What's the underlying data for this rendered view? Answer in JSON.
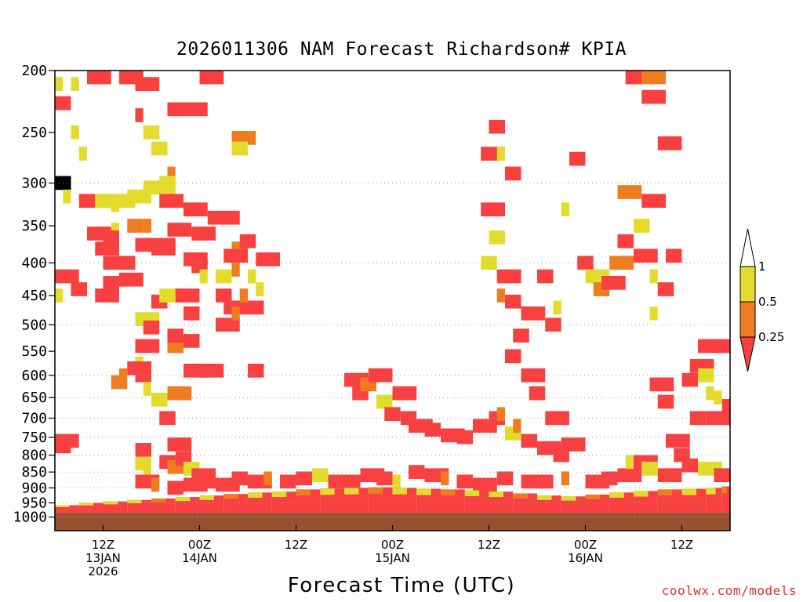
{
  "chart_data": {
    "type": "heatmap",
    "title": "2026011306 NAM Forecast Richardson# KPIA",
    "xlabel": "Forecast Time (UTC)",
    "credit": "coolwx.com/models",
    "y_axis": {
      "scale": "log-pressure",
      "range_hPa": [
        1050,
        200
      ],
      "ticks": [
        200,
        250,
        300,
        350,
        400,
        450,
        500,
        550,
        600,
        650,
        700,
        750,
        800,
        850,
        900,
        950,
        1000
      ],
      "dotted_grid_at": [
        300,
        400,
        500,
        600,
        650,
        700,
        750,
        800,
        850,
        900,
        950,
        1000
      ]
    },
    "x_axis": {
      "range_forecast_hours": [
        0,
        84
      ],
      "ticks": [
        {
          "fh": 6,
          "lines": [
            "12Z",
            "13JAN",
            "2026"
          ]
        },
        {
          "fh": 18,
          "lines": [
            "00Z",
            "14JAN"
          ]
        },
        {
          "fh": 30,
          "lines": [
            "12Z"
          ]
        },
        {
          "fh": 42,
          "lines": [
            "00Z",
            "15JAN"
          ]
        },
        {
          "fh": 54,
          "lines": [
            "12Z"
          ]
        },
        {
          "fh": 66,
          "lines": [
            "00Z",
            "16JAN"
          ]
        },
        {
          "fh": 78,
          "lines": [
            "12Z"
          ]
        }
      ]
    },
    "colorbar": {
      "labels": [
        "1",
        "0.5",
        "0.25"
      ],
      "bins": [
        {
          "range": "<0.25",
          "color": "#f84040"
        },
        {
          "range": "0.25-0.5",
          "color": "#f07c20"
        },
        {
          "range": "0.5-1",
          "color": "#e4dc2c"
        },
        {
          "range": ">1",
          "color": "#ffffff"
        }
      ]
    },
    "ground_color": "#985030",
    "surface_pressure_hPa": 985,
    "cells": [
      [
        0,
        210,
        2,
        0
      ],
      [
        2,
        210,
        2,
        0
      ],
      [
        4,
        205,
        0,
        2
      ],
      [
        8,
        205,
        0,
        2
      ],
      [
        10,
        210,
        0,
        2
      ],
      [
        18,
        205,
        0,
        2
      ],
      [
        0,
        225,
        0,
        1
      ],
      [
        10,
        235,
        0,
        0
      ],
      [
        11,
        250,
        2,
        1
      ],
      [
        12,
        265,
        2,
        1
      ],
      [
        14,
        290,
        1,
        0
      ],
      [
        14,
        230,
        0,
        4
      ],
      [
        2,
        250,
        2,
        0
      ],
      [
        3,
        270,
        2,
        0
      ],
      [
        22,
        255,
        1,
        2
      ],
      [
        22,
        265,
        2,
        1
      ],
      [
        0,
        300,
        4,
        1
      ],
      [
        1,
        315,
        2,
        0
      ],
      [
        3,
        320,
        0,
        3
      ],
      [
        5,
        320,
        2,
        4
      ],
      [
        7,
        325,
        2,
        0
      ],
      [
        9,
        315,
        2,
        2
      ],
      [
        11,
        305,
        2,
        3
      ],
      [
        13,
        300,
        2,
        1
      ],
      [
        5,
        345,
        3,
        0
      ],
      [
        7,
        355,
        2,
        0
      ],
      [
        9,
        350,
        1,
        1
      ],
      [
        11,
        350,
        1,
        0
      ],
      [
        4,
        360,
        0,
        2
      ],
      [
        6,
        365,
        0,
        1
      ],
      [
        5,
        380,
        0,
        2
      ],
      [
        6,
        400,
        0,
        3
      ],
      [
        10,
        375,
        0,
        4
      ],
      [
        12,
        380,
        0,
        2
      ],
      [
        13,
        320,
        0,
        2
      ],
      [
        14,
        355,
        0,
        2
      ],
      [
        16,
        330,
        0,
        2
      ],
      [
        17,
        360,
        0,
        2
      ],
      [
        16,
        395,
        0,
        2
      ],
      [
        19,
        340,
        0,
        3
      ],
      [
        17,
        405,
        0,
        1
      ],
      [
        18,
        420,
        2,
        0
      ],
      [
        20,
        420,
        2,
        1
      ],
      [
        22,
        410,
        1,
        0
      ],
      [
        20,
        450,
        0,
        1
      ],
      [
        22,
        380,
        1,
        1
      ],
      [
        21,
        390,
        0,
        2
      ],
      [
        23,
        370,
        0,
        1
      ],
      [
        21,
        470,
        0,
        2
      ],
      [
        23,
        450,
        1,
        0
      ],
      [
        24,
        420,
        2,
        0
      ],
      [
        25,
        395,
        0,
        2
      ],
      [
        25,
        440,
        2,
        0
      ],
      [
        20,
        500,
        0,
        2
      ],
      [
        22,
        480,
        1,
        0
      ],
      [
        24,
        470,
        0,
        1
      ],
      [
        0,
        420,
        0,
        2
      ],
      [
        0,
        450,
        2,
        0
      ],
      [
        2,
        440,
        0,
        1
      ],
      [
        5,
        450,
        0,
        2
      ],
      [
        6,
        430,
        0,
        1
      ],
      [
        8,
        425,
        0,
        2
      ],
      [
        10,
        490,
        2,
        2
      ],
      [
        10,
        540,
        0,
        2
      ],
      [
        10,
        575,
        2,
        0
      ],
      [
        11,
        505,
        0,
        1
      ],
      [
        12,
        460,
        0,
        1
      ],
      [
        13,
        450,
        2,
        2
      ],
      [
        14,
        540,
        1,
        1
      ],
      [
        14,
        520,
        0,
        1
      ],
      [
        15,
        450,
        0,
        2
      ],
      [
        16,
        480,
        0,
        1
      ],
      [
        16,
        530,
        0,
        1
      ],
      [
        6,
        580,
        3,
        2
      ],
      [
        8,
        600,
        1,
        0
      ],
      [
        7,
        615,
        1,
        1
      ],
      [
        9,
        585,
        0,
        2
      ],
      [
        10,
        600,
        0,
        1
      ],
      [
        11,
        630,
        2,
        0
      ],
      [
        12,
        655,
        2,
        1
      ],
      [
        13,
        700,
        0,
        1
      ],
      [
        14,
        640,
        1,
        2
      ],
      [
        16,
        590,
        0,
        2
      ],
      [
        18,
        590,
        0,
        2
      ],
      [
        24,
        590,
        0,
        1
      ],
      [
        0,
        760,
        0,
        2
      ],
      [
        0,
        775,
        0,
        1
      ],
      [
        10,
        785,
        0,
        1
      ],
      [
        10,
        825,
        2,
        1
      ],
      [
        11,
        845,
        2,
        0
      ],
      [
        13,
        820,
        0,
        1
      ],
      [
        14,
        770,
        0,
        2
      ],
      [
        14,
        835,
        1,
        1
      ],
      [
        15,
        810,
        0,
        1
      ],
      [
        16,
        840,
        2,
        1
      ],
      [
        17,
        860,
        0,
        2
      ],
      [
        36,
        610,
        0,
        2
      ],
      [
        37,
        640,
        0,
        1
      ],
      [
        38,
        620,
        1,
        1
      ],
      [
        39,
        600,
        0,
        2
      ],
      [
        40,
        660,
        2,
        1
      ],
      [
        41,
        690,
        0,
        1
      ],
      [
        42,
        640,
        0,
        2
      ],
      [
        43,
        700,
        0,
        1
      ],
      [
        44,
        720,
        0,
        2
      ],
      [
        46,
        730,
        0,
        1
      ],
      [
        48,
        745,
        0,
        2
      ],
      [
        50,
        750,
        0,
        1
      ],
      [
        52,
        720,
        0,
        2
      ],
      [
        54,
        700,
        0,
        1
      ],
      [
        56,
        740,
        2,
        1
      ],
      [
        57,
        720,
        1,
        0
      ],
      [
        55,
        690,
        1,
        0
      ],
      [
        58,
        760,
        0,
        1
      ],
      [
        60,
        780,
        0,
        2
      ],
      [
        62,
        800,
        0,
        1
      ],
      [
        63,
        770,
        0,
        2
      ],
      [
        61,
        700,
        0,
        2
      ],
      [
        53,
        270,
        0,
        2
      ],
      [
        54,
        245,
        0,
        1
      ],
      [
        55,
        270,
        2,
        0
      ],
      [
        56,
        290,
        0,
        1
      ],
      [
        53,
        330,
        0,
        2
      ],
      [
        54,
        365,
        2,
        1
      ],
      [
        53,
        400,
        2,
        1
      ],
      [
        55,
        420,
        0,
        2
      ],
      [
        55,
        450,
        1,
        0
      ],
      [
        56,
        460,
        0,
        1
      ],
      [
        58,
        480,
        0,
        2
      ],
      [
        57,
        520,
        0,
        1
      ],
      [
        56,
        560,
        0,
        1
      ],
      [
        58,
        600,
        0,
        2
      ],
      [
        59,
        640,
        0,
        1
      ],
      [
        60,
        420,
        0,
        1
      ],
      [
        61,
        500,
        0,
        1
      ],
      [
        62,
        470,
        2,
        0
      ],
      [
        63,
        330,
        2,
        0
      ],
      [
        64,
        275,
        0,
        1
      ],
      [
        65,
        400,
        0,
        1
      ],
      [
        66,
        420,
        2,
        2
      ],
      [
        67,
        440,
        1,
        1
      ],
      [
        68,
        430,
        0,
        2
      ],
      [
        69,
        400,
        1,
        2
      ],
      [
        70,
        370,
        0,
        1
      ],
      [
        72,
        390,
        0,
        2
      ],
      [
        72,
        350,
        2,
        1
      ],
      [
        74,
        420,
        2,
        0
      ],
      [
        75,
        440,
        0,
        1
      ],
      [
        76,
        390,
        0,
        1
      ],
      [
        73,
        320,
        0,
        2
      ],
      [
        70,
        310,
        1,
        2
      ],
      [
        73,
        220,
        0,
        2
      ],
      [
        71,
        205,
        0,
        2
      ],
      [
        73,
        205,
        1,
        2
      ],
      [
        75,
        260,
        0,
        2
      ],
      [
        74,
        480,
        2,
        0
      ],
      [
        78,
        610,
        0,
        1
      ],
      [
        79,
        580,
        0,
        2
      ],
      [
        80,
        600,
        2,
        1
      ],
      [
        81,
        640,
        2,
        0
      ],
      [
        82,
        650,
        2,
        0
      ],
      [
        83,
        670,
        0,
        2
      ],
      [
        80,
        540,
        0,
        2
      ],
      [
        82,
        540,
        0,
        1
      ],
      [
        79,
        700,
        0,
        1
      ],
      [
        81,
        700,
        0,
        2
      ],
      [
        74,
        620,
        0,
        2
      ],
      [
        75,
        660,
        0,
        1
      ],
      [
        76,
        760,
        0,
        2
      ],
      [
        77,
        800,
        0,
        1
      ],
      [
        72,
        820,
        0,
        2
      ],
      [
        73,
        840,
        2,
        1
      ],
      [
        75,
        860,
        0,
        2
      ],
      [
        78,
        830,
        0,
        1
      ],
      [
        80,
        840,
        2,
        2
      ],
      [
        82,
        860,
        0,
        1
      ],
      [
        84,
        830,
        0,
        2
      ],
      [
        70,
        860,
        0,
        2
      ],
      [
        71,
        820,
        2,
        0
      ],
      [
        36,
        880,
        0,
        1
      ],
      [
        38,
        860,
        0,
        2
      ],
      [
        40,
        870,
        0,
        1
      ],
      [
        42,
        880,
        2,
        0
      ],
      [
        30,
        870,
        0,
        1
      ],
      [
        32,
        860,
        2,
        1
      ],
      [
        34,
        880,
        0,
        2
      ],
      [
        44,
        850,
        0,
        1
      ],
      [
        46,
        860,
        0,
        2
      ],
      [
        48,
        870,
        1,
        0
      ],
      [
        50,
        880,
        0,
        1
      ],
      [
        52,
        890,
        0,
        2
      ],
      [
        55,
        870,
        0,
        1
      ],
      [
        58,
        880,
        0,
        2
      ],
      [
        60,
        880,
        0,
        1
      ],
      [
        63,
        870,
        1,
        0
      ],
      [
        66,
        880,
        0,
        2
      ],
      [
        68,
        870,
        0,
        1
      ],
      [
        22,
        870,
        0,
        1
      ],
      [
        24,
        880,
        0,
        2
      ],
      [
        26,
        870,
        1,
        0
      ],
      [
        28,
        880,
        0,
        1
      ],
      [
        10,
        880,
        0,
        2
      ],
      [
        12,
        890,
        1,
        0
      ],
      [
        14,
        900,
        0,
        1
      ],
      [
        16,
        890,
        0,
        2
      ],
      [
        18,
        880,
        0,
        1
      ],
      [
        20,
        890,
        0,
        2
      ]
    ],
    "boundary_layer": [
      [
        0,
        958,
        2
      ],
      [
        3,
        950,
        2
      ],
      [
        6,
        945,
        2
      ],
      [
        9,
        940,
        2
      ],
      [
        12,
        935,
        1
      ],
      [
        15,
        930,
        2
      ],
      [
        18,
        925,
        2
      ],
      [
        21,
        920,
        1
      ],
      [
        24,
        915,
        2
      ],
      [
        27,
        912,
        2
      ],
      [
        30,
        905,
        1
      ],
      [
        33,
        902,
        2
      ],
      [
        36,
        900,
        2
      ],
      [
        39,
        898,
        1
      ],
      [
        42,
        900,
        2
      ],
      [
        45,
        903,
        2
      ],
      [
        48,
        905,
        1
      ],
      [
        51,
        908,
        2
      ],
      [
        54,
        912,
        2
      ],
      [
        57,
        918,
        1
      ],
      [
        60,
        925,
        2
      ],
      [
        63,
        928,
        2
      ],
      [
        66,
        922,
        1
      ],
      [
        69,
        915,
        2
      ],
      [
        72,
        910,
        2
      ],
      [
        75,
        905,
        1
      ],
      [
        78,
        903,
        2
      ],
      [
        81,
        900,
        2
      ],
      [
        83,
        895,
        1
      ]
    ]
  }
}
